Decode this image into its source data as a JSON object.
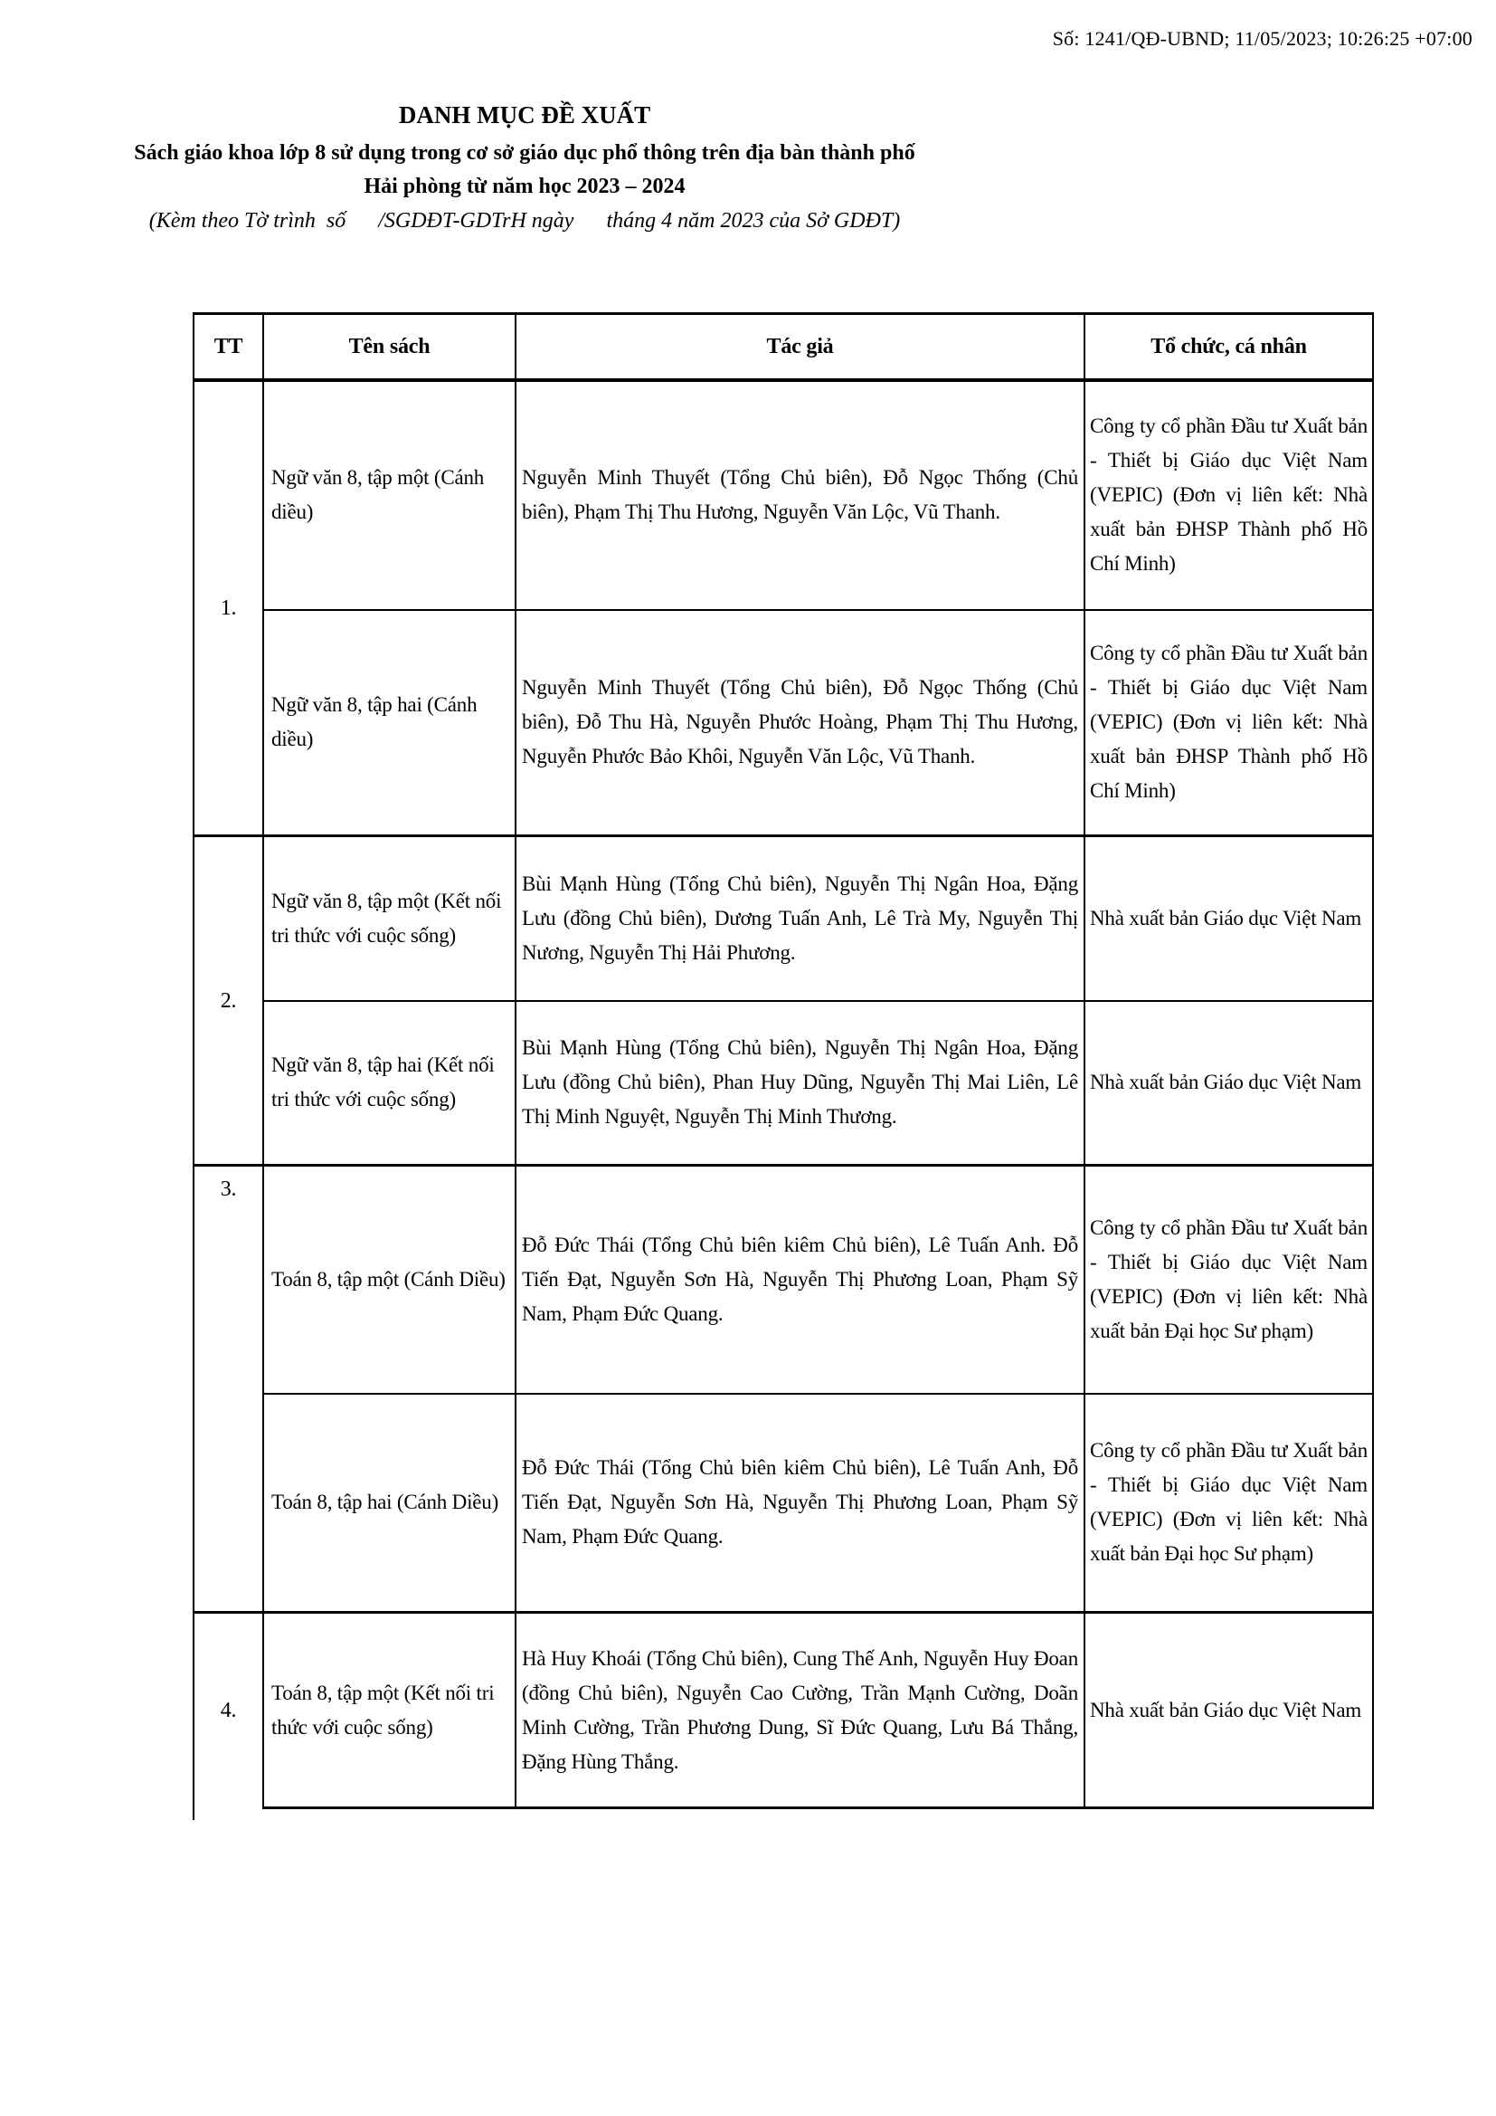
{
  "doc_number": "Số: 1241/QĐ-UBND; 11/05/2023; 10:26:25 +07:00",
  "title": "DANH MỤC ĐỀ XUẤT",
  "subtitle": "Sách giáo khoa lớp 8 sử dụng trong cơ sở giáo dục phổ thông trên địa bàn thành phố Hải phòng từ năm học 2023 – 2024",
  "attachment_note": "(Kèm theo Tờ trình  số      /SGDĐT-GDTrH ngày      tháng 4 năm 2023 của Sở GDĐT)",
  "table": {
    "headers": {
      "tt": "TT",
      "ten_sach": "Tên sách",
      "tac_gia": "Tác giả",
      "to_chuc": "Tổ chức, cá nhân"
    },
    "groups": [
      {
        "tt": "1.",
        "rows": [
          {
            "ten_sach": "Ngữ văn 8, tập một (Cánh diều)",
            "tac_gia": "Nguyễn Minh Thuyết (Tổng Chủ biên), Đỗ Ngọc Thống (Chủ biên), Phạm Thị Thu Hương, Nguyễn Văn Lộc, Vũ Thanh.",
            "to_chuc": "Công ty cổ phần Đầu tư Xuất bản - Thiết bị Giáo dục Việt Nam (VEPIC) (Đơn vị liên kết: Nhà xuất bản ĐHSP Thành phố Hồ Chí Minh)"
          },
          {
            "ten_sach": "Ngữ văn 8, tập hai (Cánh diều)",
            "tac_gia": "Nguyễn Minh Thuyết (Tổng Chủ biên), Đỗ Ngọc Thống (Chủ biên), Đỗ Thu Hà, Nguyễn Phước Hoàng, Phạm Thị Thu Hương, Nguyễn Phước Bảo Khôi, Nguyễn Văn Lộc, Vũ Thanh.",
            "to_chuc": "Công ty cổ phần Đầu tư Xuất bản - Thiết bị Giáo dục Việt Nam (VEPIC) (Đơn vị liên kết: Nhà xuất bản ĐHSP Thành phố Hồ Chí Minh)"
          }
        ]
      },
      {
        "tt": "2.",
        "rows": [
          {
            "ten_sach": "Ngữ văn 8, tập một (Kết nối tri thức với cuộc sống)",
            "tac_gia": "Bùi Mạnh Hùng (Tổng Chủ biên), Nguyễn Thị Ngân Hoa, Đặng Lưu (đồng Chủ biên), Dương Tuấn Anh, Lê Trà My, Nguyễn Thị Nương, Nguyễn Thị Hải Phương.",
            "to_chuc": "Nhà xuất bản Giáo dục Việt Nam"
          },
          {
            "ten_sach": "Ngữ văn 8, tập hai (Kết nối tri thức với cuộc sống)",
            "tac_gia": "Bùi Mạnh Hùng (Tổng Chủ biên), Nguyễn Thị Ngân Hoa, Đặng Lưu (đồng Chủ biên), Phan Huy Dũng, Nguyễn Thị Mai Liên, Lê Thị Minh Nguyệt, Nguyễn Thị Minh Thương.",
            "to_chuc": "Nhà xuất bản Giáo dục Việt Nam"
          }
        ]
      },
      {
        "tt": "3.",
        "rows": [
          {
            "ten_sach": "Toán 8, tập một (Cánh Diều)",
            "tac_gia": "Đỗ Đức Thái (Tổng Chủ biên kiêm Chủ biên), Lê Tuấn Anh. Đỗ Tiến Đạt, Nguyễn Sơn Hà, Nguyễn Thị Phương Loan, Phạm Sỹ Nam, Phạm Đức Quang.",
            "to_chuc": "Công ty cổ phần Đầu tư Xuất bản - Thiết bị Giáo dục Việt Nam (VEPIC) (Đơn vị liên kết: Nhà xuất bản Đại học Sư phạm)"
          },
          {
            "ten_sach": "Toán 8, tập hai (Cánh Diều)",
            "tac_gia": "Đỗ Đức Thái (Tổng Chủ biên kiêm Chủ biên), Lê Tuấn Anh, Đỗ Tiến Đạt, Nguyễn Sơn Hà, Nguyễn Thị Phương Loan, Phạm Sỹ Nam, Phạm Đức Quang.",
            "to_chuc": "Công ty cổ phần Đầu tư Xuất bản - Thiết bị Giáo dục Việt Nam (VEPIC) (Đơn vị liên kết: Nhà xuất bản Đại học Sư phạm)"
          }
        ]
      },
      {
        "tt": "4.",
        "rows": [
          {
            "ten_sach": "Toán 8, tập một (Kết nối tri thức với cuộc sống)",
            "tac_gia": "Hà Huy Khoái (Tổng Chủ biên), Cung Thế Anh, Nguyễn Huy Đoan (đồng Chủ biên), Nguyễn Cao Cường, Trần Mạnh Cường, Doãn Minh Cường, Trần Phương Dung, Sĩ Đức Quang, Lưu Bá Thắng, Đặng Hùng Thắng.",
            "to_chuc": "Nhà xuất bản Giáo dục Việt Nam"
          }
        ]
      }
    ]
  }
}
